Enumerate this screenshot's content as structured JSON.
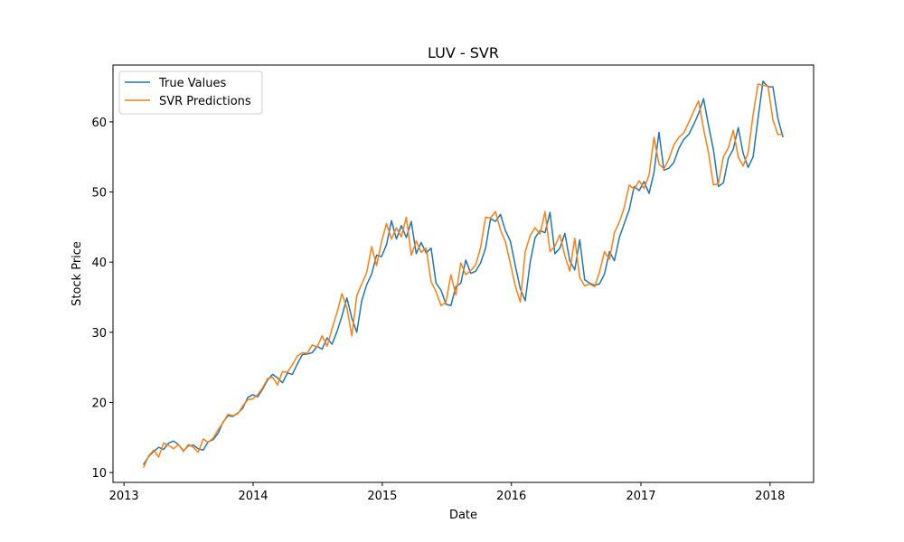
{
  "chart_data": {
    "type": "line",
    "title": "LUV - SVR",
    "xlabel": "Date",
    "ylabel": "Stock Price",
    "x_ticks": [
      "2013",
      "2014",
      "2015",
      "2016",
      "2017",
      "2018"
    ],
    "y_ticks": [
      "10",
      "20",
      "30",
      "40",
      "50",
      "60"
    ],
    "xlim": [
      "2012-12-01",
      "2018-05-04"
    ],
    "ylim": [
      8.6,
      68.1
    ],
    "grid": false,
    "legend_position": "top-left",
    "series": [
      {
        "name": "True Values",
        "color": "#1f77b4",
        "points": [
          [
            "2013-02-26",
            11.2
          ],
          [
            "2013-03-12",
            12.3
          ],
          [
            "2013-03-26",
            13.0
          ],
          [
            "2013-04-09",
            13.6
          ],
          [
            "2013-04-23",
            13.3
          ],
          [
            "2013-05-07",
            14.2
          ],
          [
            "2013-05-21",
            14.5
          ],
          [
            "2013-06-04",
            14.0
          ],
          [
            "2013-06-18",
            13.1
          ],
          [
            "2013-07-02",
            13.8
          ],
          [
            "2013-07-16",
            13.9
          ],
          [
            "2013-07-30",
            13.4
          ],
          [
            "2013-08-13",
            13.2
          ],
          [
            "2013-08-27",
            14.4
          ],
          [
            "2013-09-10",
            14.7
          ],
          [
            "2013-09-24",
            15.6
          ],
          [
            "2013-10-08",
            17.2
          ],
          [
            "2013-10-22",
            18.1
          ],
          [
            "2013-11-05",
            18.0
          ],
          [
            "2013-11-19",
            18.5
          ],
          [
            "2013-12-03",
            19.2
          ],
          [
            "2013-12-17",
            20.7
          ],
          [
            "2013-12-31",
            21.1
          ],
          [
            "2014-01-14",
            20.8
          ],
          [
            "2014-01-28",
            21.9
          ],
          [
            "2014-02-11",
            23.2
          ],
          [
            "2014-02-25",
            24.0
          ],
          [
            "2014-03-11",
            23.5
          ],
          [
            "2014-03-25",
            22.8
          ],
          [
            "2014-04-08",
            24.2
          ],
          [
            "2014-04-22",
            24.0
          ],
          [
            "2014-05-06",
            25.5
          ],
          [
            "2014-05-20",
            26.8
          ],
          [
            "2014-06-03",
            26.9
          ],
          [
            "2014-06-17",
            27.1
          ],
          [
            "2014-07-01",
            28.0
          ],
          [
            "2014-07-15",
            27.6
          ],
          [
            "2014-07-29",
            29.2
          ],
          [
            "2014-08-12",
            28.3
          ],
          [
            "2014-08-26",
            30.1
          ],
          [
            "2014-09-09",
            32.3
          ],
          [
            "2014-09-23",
            34.9
          ],
          [
            "2014-10-07",
            32.0
          ],
          [
            "2014-10-21",
            30.0
          ],
          [
            "2014-11-04",
            34.5
          ],
          [
            "2014-11-18",
            36.8
          ],
          [
            "2014-12-02",
            38.3
          ],
          [
            "2014-12-16",
            41.0
          ],
          [
            "2014-12-30",
            40.8
          ],
          [
            "2015-01-13",
            42.5
          ],
          [
            "2015-01-27",
            45.9
          ],
          [
            "2015-02-10",
            43.3
          ],
          [
            "2015-02-24",
            45.2
          ],
          [
            "2015-03-10",
            43.5
          ],
          [
            "2015-03-24",
            45.8
          ],
          [
            "2015-04-07",
            41.2
          ],
          [
            "2015-04-21",
            42.8
          ],
          [
            "2015-05-05",
            41.3
          ],
          [
            "2015-05-19",
            42.0
          ],
          [
            "2015-06-02",
            37.0
          ],
          [
            "2015-06-16",
            36.0
          ],
          [
            "2015-06-30",
            34.0
          ],
          [
            "2015-07-14",
            33.8
          ],
          [
            "2015-07-28",
            36.5
          ],
          [
            "2015-08-11",
            37.0
          ],
          [
            "2015-08-25",
            40.3
          ],
          [
            "2015-09-08",
            38.4
          ],
          [
            "2015-09-22",
            38.7
          ],
          [
            "2015-10-06",
            39.9
          ],
          [
            "2015-10-20",
            42.0
          ],
          [
            "2015-11-03",
            46.2
          ],
          [
            "2015-11-17",
            45.8
          ],
          [
            "2015-12-01",
            46.8
          ],
          [
            "2015-12-15",
            44.5
          ],
          [
            "2015-12-29",
            43.0
          ],
          [
            "2016-01-12",
            39.5
          ],
          [
            "2016-01-26",
            36.2
          ],
          [
            "2016-02-09",
            34.5
          ],
          [
            "2016-02-23",
            40.0
          ],
          [
            "2016-03-08",
            43.5
          ],
          [
            "2016-03-22",
            44.5
          ],
          [
            "2016-04-05",
            44.2
          ],
          [
            "2016-04-19",
            47.1
          ],
          [
            "2016-05-03",
            41.2
          ],
          [
            "2016-05-17",
            42.0
          ],
          [
            "2016-05-31",
            44.1
          ],
          [
            "2016-06-14",
            40.2
          ],
          [
            "2016-06-28",
            38.9
          ],
          [
            "2016-07-12",
            43.2
          ],
          [
            "2016-07-26",
            37.5
          ],
          [
            "2016-08-09",
            37.0
          ],
          [
            "2016-08-23",
            36.7
          ],
          [
            "2016-09-06",
            36.9
          ],
          [
            "2016-09-20",
            38.3
          ],
          [
            "2016-10-04",
            41.5
          ],
          [
            "2016-10-18",
            40.2
          ],
          [
            "2016-11-01",
            43.5
          ],
          [
            "2016-11-15",
            45.5
          ],
          [
            "2016-11-29",
            47.5
          ],
          [
            "2016-12-13",
            50.8
          ],
          [
            "2016-12-27",
            50.2
          ],
          [
            "2017-01-10",
            51.5
          ],
          [
            "2017-01-24",
            49.8
          ],
          [
            "2017-02-07",
            52.8
          ],
          [
            "2017-02-21",
            58.5
          ],
          [
            "2017-03-07",
            53.1
          ],
          [
            "2017-03-21",
            53.4
          ],
          [
            "2017-04-04",
            54.2
          ],
          [
            "2017-04-18",
            56.2
          ],
          [
            "2017-05-02",
            57.5
          ],
          [
            "2017-05-16",
            58.2
          ],
          [
            "2017-05-30",
            59.6
          ],
          [
            "2017-06-13",
            61.2
          ],
          [
            "2017-06-27",
            63.3
          ],
          [
            "2017-07-11",
            59.5
          ],
          [
            "2017-07-25",
            56.0
          ],
          [
            "2017-08-08",
            50.8
          ],
          [
            "2017-08-22",
            51.3
          ],
          [
            "2017-09-05",
            54.8
          ],
          [
            "2017-09-19",
            56.1
          ],
          [
            "2017-10-03",
            59.2
          ],
          [
            "2017-10-17",
            55.5
          ],
          [
            "2017-10-31",
            53.5
          ],
          [
            "2017-11-14",
            55.0
          ],
          [
            "2017-11-28",
            60.5
          ],
          [
            "2017-12-12",
            65.8
          ],
          [
            "2017-12-26",
            65.0
          ],
          [
            "2018-01-09",
            65.0
          ],
          [
            "2018-01-23",
            60.5
          ],
          [
            "2018-02-06",
            57.9
          ]
        ]
      },
      {
        "name": "SVR Predictions",
        "color": "#ff7f0e",
        "points": [
          [
            "2013-02-26",
            10.8
          ],
          [
            "2013-03-12",
            12.4
          ],
          [
            "2013-03-26",
            13.2
          ],
          [
            "2013-04-09",
            12.2
          ],
          [
            "2013-04-23",
            14.2
          ],
          [
            "2013-05-07",
            13.9
          ],
          [
            "2013-05-21",
            13.4
          ],
          [
            "2013-06-04",
            14.0
          ],
          [
            "2013-06-18",
            13.0
          ],
          [
            "2013-07-02",
            14.0
          ],
          [
            "2013-07-16",
            13.6
          ],
          [
            "2013-07-30",
            12.9
          ],
          [
            "2013-08-13",
            14.8
          ],
          [
            "2013-08-27",
            14.3
          ],
          [
            "2013-09-10",
            14.9
          ],
          [
            "2013-09-24",
            16.1
          ],
          [
            "2013-10-08",
            17.1
          ],
          [
            "2013-10-22",
            18.3
          ],
          [
            "2013-11-05",
            18.1
          ],
          [
            "2013-11-19",
            18.4
          ],
          [
            "2013-12-03",
            19.5
          ],
          [
            "2013-12-17",
            20.4
          ],
          [
            "2013-12-31",
            20.5
          ],
          [
            "2014-01-14",
            21.1
          ],
          [
            "2014-01-28",
            22.1
          ],
          [
            "2014-02-11",
            23.4
          ],
          [
            "2014-02-25",
            23.6
          ],
          [
            "2014-03-11",
            22.5
          ],
          [
            "2014-03-25",
            24.4
          ],
          [
            "2014-04-08",
            24.3
          ],
          [
            "2014-04-22",
            25.4
          ],
          [
            "2014-05-06",
            26.6
          ],
          [
            "2014-05-20",
            27.1
          ],
          [
            "2014-06-03",
            27.0
          ],
          [
            "2014-06-17",
            28.2
          ],
          [
            "2014-07-01",
            27.9
          ],
          [
            "2014-07-15",
            29.5
          ],
          [
            "2014-07-29",
            28.0
          ],
          [
            "2014-08-12",
            30.5
          ],
          [
            "2014-08-26",
            32.8
          ],
          [
            "2014-09-09",
            35.5
          ],
          [
            "2014-09-23",
            33.5
          ],
          [
            "2014-10-07",
            29.5
          ],
          [
            "2014-10-21",
            35.2
          ],
          [
            "2014-11-04",
            36.9
          ],
          [
            "2014-11-18",
            38.5
          ],
          [
            "2014-12-02",
            42.2
          ],
          [
            "2014-12-16",
            39.5
          ],
          [
            "2014-12-30",
            42.9
          ],
          [
            "2015-01-13",
            45.5
          ],
          [
            "2015-01-27",
            43.3
          ],
          [
            "2015-02-10",
            44.9
          ],
          [
            "2015-02-24",
            43.6
          ],
          [
            "2015-03-10",
            46.4
          ],
          [
            "2015-03-24",
            41.0
          ],
          [
            "2015-04-07",
            43.0
          ],
          [
            "2015-04-21",
            41.4
          ],
          [
            "2015-05-05",
            42.0
          ],
          [
            "2015-05-19",
            37.2
          ],
          [
            "2015-06-02",
            35.8
          ],
          [
            "2015-06-16",
            33.8
          ],
          [
            "2015-06-30",
            34.3
          ],
          [
            "2015-07-14",
            38.2
          ],
          [
            "2015-07-28",
            35.3
          ],
          [
            "2015-08-11",
            39.9
          ],
          [
            "2015-08-25",
            38.2
          ],
          [
            "2015-09-08",
            38.8
          ],
          [
            "2015-09-22",
            39.6
          ],
          [
            "2015-10-06",
            42.1
          ],
          [
            "2015-10-20",
            46.4
          ],
          [
            "2015-11-03",
            46.3
          ],
          [
            "2015-11-17",
            47.2
          ],
          [
            "2015-12-01",
            44.6
          ],
          [
            "2015-12-15",
            42.9
          ],
          [
            "2015-12-29",
            39.8
          ],
          [
            "2016-01-12",
            36.6
          ],
          [
            "2016-01-26",
            34.3
          ],
          [
            "2016-02-09",
            41.5
          ],
          [
            "2016-02-23",
            43.8
          ],
          [
            "2016-03-08",
            44.9
          ],
          [
            "2016-03-22",
            44.0
          ],
          [
            "2016-04-05",
            47.2
          ],
          [
            "2016-04-19",
            41.5
          ],
          [
            "2016-05-03",
            42.3
          ],
          [
            "2016-05-17",
            43.9
          ],
          [
            "2016-05-31",
            40.9
          ],
          [
            "2016-06-14",
            38.7
          ],
          [
            "2016-06-28",
            43.4
          ],
          [
            "2016-07-12",
            37.8
          ],
          [
            "2016-07-26",
            36.6
          ],
          [
            "2016-08-09",
            36.9
          ],
          [
            "2016-08-23",
            36.5
          ],
          [
            "2016-09-06",
            38.6
          ],
          [
            "2016-09-20",
            41.5
          ],
          [
            "2016-10-04",
            40.4
          ],
          [
            "2016-10-18",
            44.2
          ],
          [
            "2016-11-01",
            45.7
          ],
          [
            "2016-11-15",
            47.8
          ],
          [
            "2016-11-29",
            51.0
          ],
          [
            "2016-12-13",
            50.4
          ],
          [
            "2016-12-27",
            51.6
          ],
          [
            "2017-01-10",
            50.5
          ],
          [
            "2017-01-24",
            52.4
          ],
          [
            "2017-02-07",
            57.8
          ],
          [
            "2017-02-21",
            54.0
          ],
          [
            "2017-03-07",
            53.3
          ],
          [
            "2017-03-21",
            54.7
          ],
          [
            "2017-04-04",
            56.7
          ],
          [
            "2017-04-18",
            57.8
          ],
          [
            "2017-05-02",
            58.4
          ],
          [
            "2017-05-16",
            59.9
          ],
          [
            "2017-05-30",
            61.5
          ],
          [
            "2017-06-13",
            63.0
          ],
          [
            "2017-06-27",
            59.0
          ],
          [
            "2017-07-11",
            55.6
          ],
          [
            "2017-07-25",
            51.0
          ],
          [
            "2017-08-08",
            51.2
          ],
          [
            "2017-08-22",
            55.0
          ],
          [
            "2017-09-05",
            56.3
          ],
          [
            "2017-09-19",
            58.8
          ],
          [
            "2017-10-03",
            55.0
          ],
          [
            "2017-10-17",
            53.7
          ],
          [
            "2017-10-31",
            55.6
          ],
          [
            "2017-11-14",
            61.0
          ],
          [
            "2017-11-28",
            65.4
          ],
          [
            "2017-12-12",
            65.2
          ],
          [
            "2017-12-26",
            65.1
          ],
          [
            "2018-01-09",
            60.3
          ],
          [
            "2018-01-23",
            58.2
          ],
          [
            "2018-02-06",
            58.2
          ]
        ]
      }
    ]
  }
}
